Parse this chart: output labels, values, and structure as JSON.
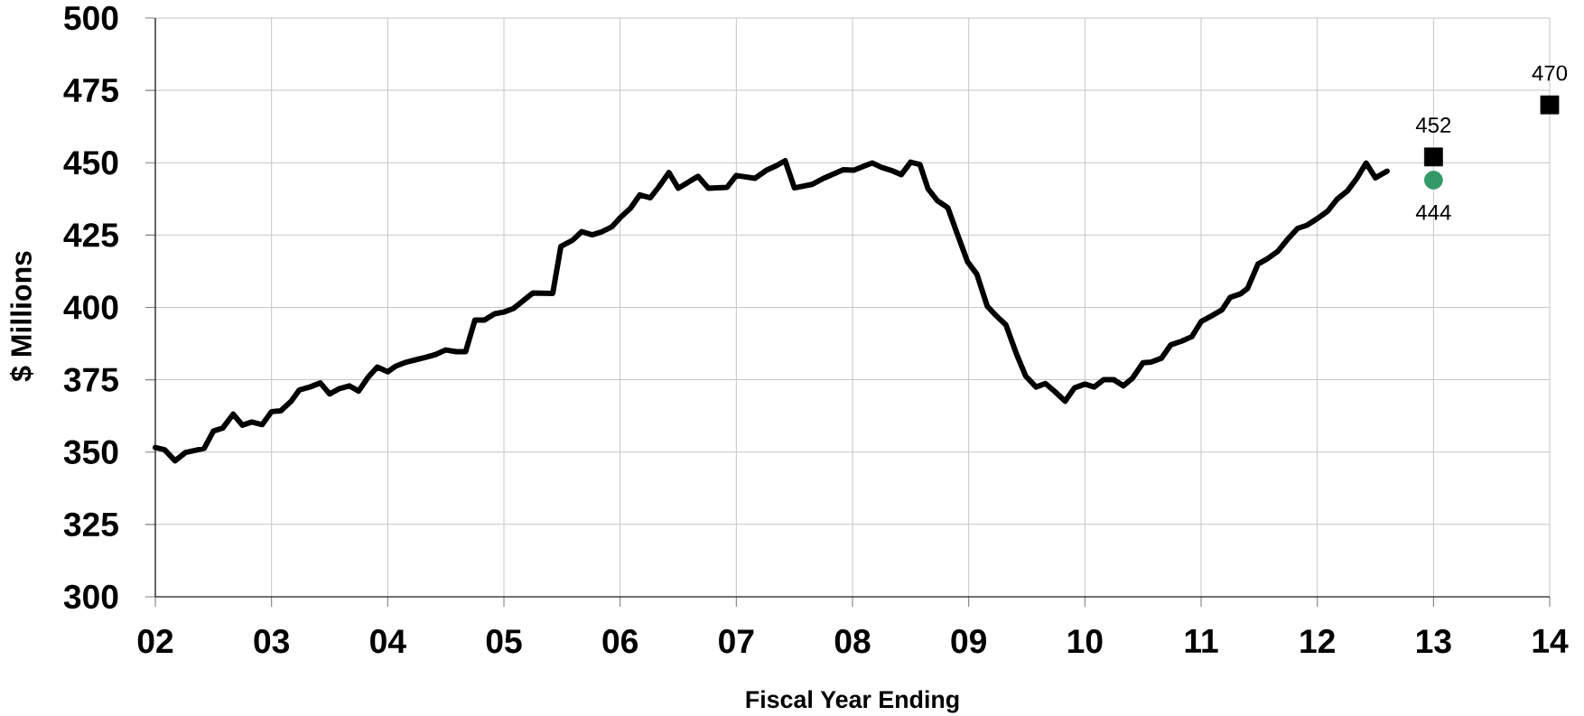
{
  "chart_data": {
    "type": "line",
    "xlabel": "Fiscal Year Ending",
    "ylabel": "$ Millions",
    "xlim": [
      2002,
      2014
    ],
    "ylim": [
      300,
      500
    ],
    "xticks": [
      {
        "value": 2002,
        "label": "02"
      },
      {
        "value": 2003,
        "label": "03"
      },
      {
        "value": 2004,
        "label": "04"
      },
      {
        "value": 2005,
        "label": "05"
      },
      {
        "value": 2006,
        "label": "06"
      },
      {
        "value": 2007,
        "label": "07"
      },
      {
        "value": 2008,
        "label": "08"
      },
      {
        "value": 2009,
        "label": "09"
      },
      {
        "value": 2010,
        "label": "10"
      },
      {
        "value": 2011,
        "label": "11"
      },
      {
        "value": 2012,
        "label": "12"
      },
      {
        "value": 2013,
        "label": "13"
      },
      {
        "value": 2014,
        "label": "14"
      }
    ],
    "yticks": [
      300,
      325,
      350,
      375,
      400,
      425,
      450,
      475,
      500
    ],
    "grid": true,
    "series": [
      {
        "type": "line",
        "color": "#000000",
        "marker": "none",
        "x": [
          2002.0,
          2002.08,
          2002.17,
          2002.26,
          2002.42,
          2002.5,
          2002.58,
          2002.67,
          2002.75,
          2002.83,
          2002.92,
          2003.0,
          2003.08,
          2003.17,
          2003.24,
          2003.33,
          2003.42,
          2003.5,
          2003.58,
          2003.67,
          2003.75,
          2003.83,
          2003.91,
          2004.0,
          2004.07,
          2004.16,
          2004.24,
          2004.33,
          2004.41,
          2004.5,
          2004.59,
          2004.67,
          2004.75,
          2004.83,
          2004.92,
          2005.0,
          2005.08,
          2005.25,
          2005.42,
          2005.49,
          2005.59,
          2005.67,
          2005.76,
          2005.84,
          2005.93,
          2006.0,
          2006.09,
          2006.17,
          2006.26,
          2006.33,
          2006.42,
          2006.5,
          2006.67,
          2006.76,
          2006.92,
          2007.0,
          2007.16,
          2007.26,
          2007.34,
          2007.42,
          2007.5,
          2007.65,
          2007.76,
          2007.92,
          2008.01,
          2008.09,
          2008.17,
          2008.25,
          2008.33,
          2008.42,
          2008.5,
          2008.58,
          2008.65,
          2008.73,
          2008.82,
          2008.9,
          2008.99,
          2009.07,
          2009.16,
          2009.24,
          2009.32,
          2009.41,
          2009.49,
          2009.58,
          2009.66,
          2009.74,
          2009.83,
          2009.91,
          2010.0,
          2010.08,
          2010.16,
          2010.25,
          2010.33,
          2010.41,
          2010.5,
          2010.57,
          2010.66,
          2010.74,
          2010.83,
          2010.92,
          2011.0,
          2011.09,
          2011.18,
          2011.25,
          2011.34,
          2011.4,
          2011.49,
          2011.57,
          2011.66,
          2011.75,
          2011.83,
          2011.91,
          2012.0,
          2012.09,
          2012.17,
          2012.26,
          2012.34,
          2012.42,
          2012.5,
          2012.6
        ],
        "values": [
          351.6,
          350.8,
          347.0,
          349.9,
          351.3,
          357.3,
          358.3,
          363.1,
          359.3,
          360.4,
          359.5,
          364.0,
          364.3,
          367.6,
          371.5,
          372.5,
          373.9,
          370.1,
          371.9,
          372.9,
          371.1,
          375.8,
          379.4,
          377.8,
          379.7,
          381.1,
          381.9,
          382.8,
          383.7,
          385.3,
          384.7,
          384.7,
          395.6,
          395.6,
          397.8,
          398.4,
          399.6,
          405.0,
          404.8,
          421.1,
          423.2,
          426.2,
          425.1,
          426.1,
          427.9,
          431.0,
          434.3,
          438.9,
          437.9,
          441.5,
          446.6,
          441.2,
          445.3,
          441.2,
          441.5,
          445.6,
          444.6,
          447.4,
          448.9,
          450.7,
          441.3,
          442.5,
          444.8,
          447.6,
          447.4,
          448.7,
          449.9,
          448.4,
          447.4,
          445.9,
          450.2,
          449.4,
          441.0,
          436.9,
          434.5,
          425.6,
          415.8,
          411.5,
          400.4,
          397.0,
          394.0,
          384.0,
          376.3,
          372.5,
          373.7,
          371.0,
          367.6,
          372.2,
          373.5,
          372.5,
          375.0,
          375.0,
          372.9,
          375.6,
          380.9,
          381.1,
          382.5,
          387.1,
          388.3,
          389.9,
          395.1,
          397.1,
          399.2,
          403.5,
          404.7,
          406.6,
          415.0,
          416.8,
          419.4,
          423.8,
          427.3,
          428.4,
          430.7,
          433.3,
          437.4,
          440.3,
          444.6,
          449.9,
          444.8,
          447.1
        ]
      },
      {
        "type": "scatter",
        "color": "#000000",
        "marker": "square",
        "x": [
          2013,
          2014
        ],
        "values": [
          452,
          470
        ],
        "value_labels": [
          "452",
          "470"
        ]
      },
      {
        "type": "scatter",
        "color": "#339966",
        "marker": "circle",
        "x": [
          2013
        ],
        "values": [
          444
        ],
        "value_labels": [
          "444"
        ]
      }
    ]
  }
}
